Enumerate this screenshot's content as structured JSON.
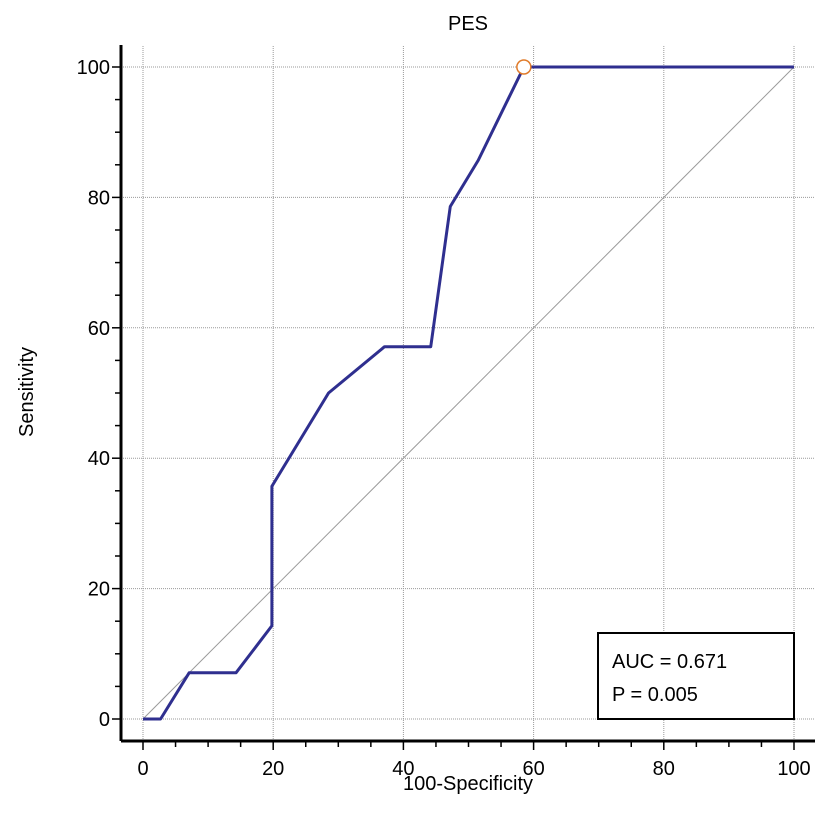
{
  "chart_data": {
    "type": "line",
    "title": "PES",
    "xlabel": "100-Specificity",
    "ylabel": "Sensitivity",
    "xlim": [
      0,
      100
    ],
    "ylim": [
      0,
      100
    ],
    "xticks": [
      0,
      20,
      40,
      60,
      80,
      100
    ],
    "yticks": [
      0,
      20,
      40,
      60,
      80,
      100
    ],
    "grid": true,
    "reference_line": {
      "x": [
        0,
        100
      ],
      "y": [
        0,
        100
      ]
    },
    "series": [
      {
        "x": [
          0,
          2.7,
          7.1,
          14.3,
          19.8,
          19.8,
          28.5,
          37.1,
          44.2,
          47.2,
          51.5,
          58.5,
          100
        ],
        "y": [
          0,
          0,
          7.1,
          7.1,
          14.3,
          35.7,
          50,
          57.1,
          57.1,
          78.6,
          85.7,
          100,
          100
        ]
      }
    ],
    "highlight_point": {
      "x": 58.5,
      "y": 100
    },
    "annotation": {
      "auc": "AUC = 0.671",
      "p": "P = 0.005"
    },
    "colors": {
      "series": "#2f2f8f",
      "highlight": "#e07b2a",
      "grid": "#9a9a9a"
    }
  }
}
